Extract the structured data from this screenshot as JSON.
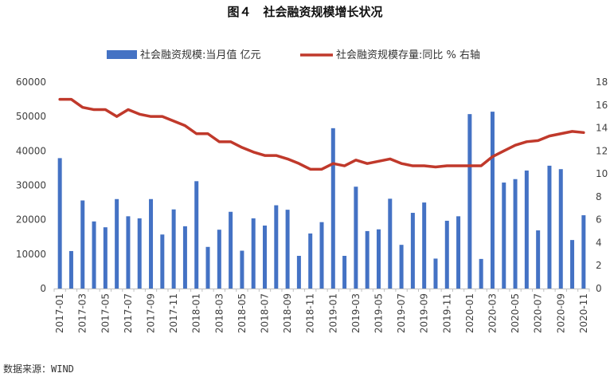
{
  "title": "图４　社会融资规模增长状况",
  "source": "数据来源：WIND",
  "colors": {
    "bar": "#4472C4",
    "line": "#C0392B"
  },
  "chart_data": {
    "type": "bar+line",
    "categories": [
      "2017-01",
      "2017-02",
      "2017-03",
      "2017-04",
      "2017-05",
      "2017-06",
      "2017-07",
      "2017-08",
      "2017-09",
      "2017-10",
      "2017-11",
      "2017-12",
      "2018-01",
      "2018-02",
      "2018-03",
      "2018-04",
      "2018-05",
      "2018-06",
      "2018-07",
      "2018-08",
      "2018-09",
      "2018-10",
      "2018-11",
      "2018-12",
      "2019-01",
      "2019-02",
      "2019-03",
      "2019-04",
      "2019-05",
      "2019-06",
      "2019-07",
      "2019-08",
      "2019-09",
      "2019-10",
      "2019-11",
      "2019-12",
      "2020-01",
      "2020-02",
      "2020-03",
      "2020-04",
      "2020-05",
      "2020-06",
      "2020-07",
      "2020-08",
      "2020-09",
      "2020-10",
      "2020-11"
    ],
    "x_tick_labels": [
      "2017-01",
      "2017-03",
      "2017-05",
      "2017-07",
      "2017-09",
      "2017-11",
      "2018-01",
      "2018-03",
      "2018-05",
      "2018-07",
      "2018-09",
      "2018-11",
      "2019-01",
      "2019-03",
      "2019-05",
      "2019-07",
      "2019-09",
      "2019-11",
      "2020-01",
      "2020-03",
      "2020-05",
      "2020-07",
      "2020-09",
      "2020-11"
    ],
    "series": [
      {
        "name": "社会融资规模:当月值 亿元",
        "type": "bar",
        "axis": "left",
        "values": [
          37900,
          10900,
          25600,
          19500,
          17800,
          26000,
          21000,
          20400,
          26000,
          15700,
          23000,
          18100,
          31200,
          12100,
          17100,
          22300,
          11000,
          20400,
          18300,
          24200,
          22900,
          9500,
          16000,
          19300,
          46600,
          9500,
          29600,
          16700,
          17200,
          26100,
          12700,
          22000,
          25000,
          8700,
          19700,
          21000,
          50700,
          8600,
          51400,
          30800,
          31800,
          34300,
          16900,
          35700,
          34700,
          14100,
          21300
        ]
      },
      {
        "name": "社会融资规模存量:同比 % 右轴",
        "type": "line",
        "axis": "right",
        "values": [
          16.5,
          16.5,
          15.8,
          15.6,
          15.6,
          15.0,
          15.6,
          15.2,
          15.0,
          15.0,
          14.6,
          14.2,
          13.5,
          13.5,
          12.8,
          12.8,
          12.3,
          11.9,
          11.6,
          11.6,
          11.3,
          10.9,
          10.4,
          10.4,
          10.9,
          10.7,
          11.2,
          10.9,
          11.1,
          11.3,
          10.9,
          10.7,
          10.7,
          10.6,
          10.7,
          10.7,
          10.7,
          10.7,
          11.5,
          12.0,
          12.5,
          12.8,
          12.9,
          13.3,
          13.5,
          13.7,
          13.6
        ]
      }
    ],
    "y_left": {
      "min": 0,
      "max": 60000,
      "ticks": [
        "0",
        "10000",
        "20000",
        "30000",
        "40000",
        "50000",
        "60000"
      ]
    },
    "y_right": {
      "min": 0,
      "max": 18,
      "ticks": [
        "0",
        "2",
        "4",
        "6",
        "8",
        "10",
        "12",
        "14",
        "16",
        "18"
      ]
    },
    "legend_position": "top",
    "grid": false
  }
}
